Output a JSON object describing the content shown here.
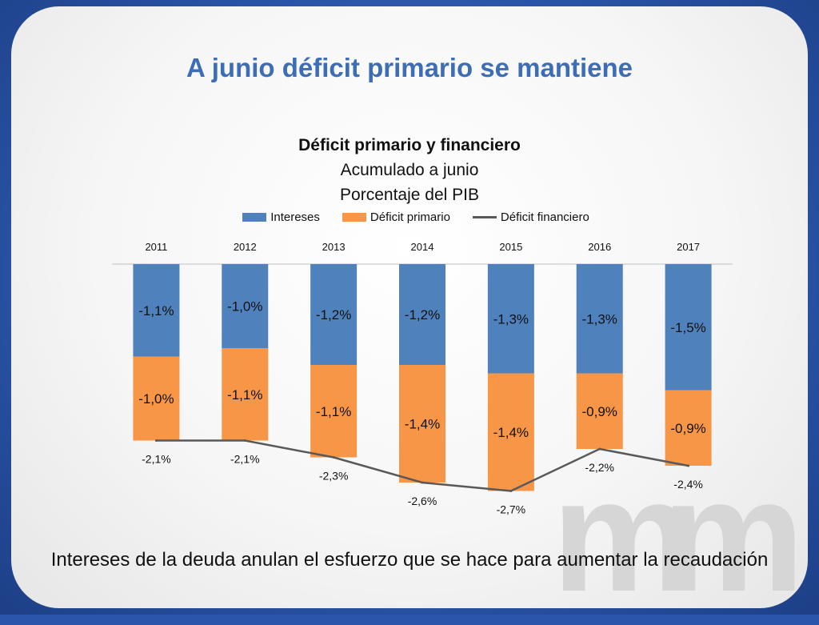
{
  "slide": {
    "title": "A junio déficit primario se mantiene",
    "footer": "Intereses de la deuda anulan el esfuerzo que se hace para aumentar la recaudación",
    "watermark_text": "m"
  },
  "colors": {
    "intereses": "#4f81bd",
    "deficit_primario": "#f79646",
    "deficit_financiero": "#595959",
    "title": "#3d6db5"
  },
  "chart_data": {
    "type": "bar",
    "stacked": true,
    "title": "Déficit primario y financiero",
    "subtitle_lines": [
      "Acumulado a junio",
      "Porcentaje del PIB"
    ],
    "legend": {
      "position": "top"
    },
    "categories": [
      "2011",
      "2012",
      "2013",
      "2014",
      "2015",
      "2016",
      "2017"
    ],
    "series": [
      {
        "name": "Intereses",
        "type": "bar",
        "values": [
          -1.1,
          -1.0,
          -1.2,
          -1.2,
          -1.3,
          -1.3,
          -1.5
        ],
        "labels": [
          "-1,1%",
          "-1,0%",
          "-1,2%",
          "-1,2%",
          "-1,3%",
          "-1,3%",
          "-1,5%"
        ]
      },
      {
        "name": "Déficit primario",
        "type": "bar",
        "values": [
          -1.0,
          -1.1,
          -1.1,
          -1.4,
          -1.4,
          -0.9,
          -0.9
        ],
        "labels": [
          "-1,0%",
          "-1,1%",
          "-1,1%",
          "-1,4%",
          "-1,4%",
          "-0,9%",
          "-0,9%"
        ]
      },
      {
        "name": "Déficit financiero",
        "type": "line",
        "values": [
          -2.1,
          -2.1,
          -2.3,
          -2.6,
          -2.7,
          -2.2,
          -2.4
        ],
        "labels": [
          "-2,1%",
          "-2,1%",
          "-2,3%",
          "-2,6%",
          "-2,7%",
          "-2,2%",
          "-2,4%"
        ]
      }
    ],
    "ylim": [
      -2.8,
      0
    ],
    "grid": false,
    "xaxis_position": "top"
  }
}
